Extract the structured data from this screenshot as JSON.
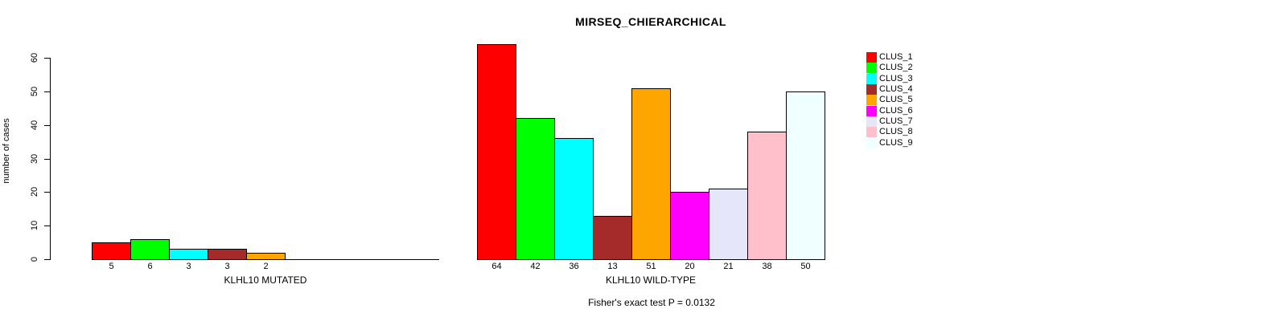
{
  "title": "MIRSEQ_CHIERARCHICAL",
  "footer": "Fisher's exact test P = 0.0132",
  "y_axis": {
    "label": "number of cases",
    "ticks": [
      0,
      10,
      20,
      30,
      40,
      50,
      60
    ]
  },
  "legend": {
    "items": [
      {
        "label": "CLUS_1",
        "color": "#FF0000"
      },
      {
        "label": "CLUS_2",
        "color": "#00FF00"
      },
      {
        "label": "CLUS_3",
        "color": "#00FFFF"
      },
      {
        "label": "CLUS_4",
        "color": "#A52A2A"
      },
      {
        "label": "CLUS_5",
        "color": "#FFA500"
      },
      {
        "label": "CLUS_6",
        "color": "#FF00FF"
      },
      {
        "label": "CLUS_7",
        "color": "#E6E6FA"
      },
      {
        "label": "CLUS_8",
        "color": "#FFC0CB"
      },
      {
        "label": "CLUS_9",
        "color": "#F0FFFF"
      }
    ]
  },
  "chart_data": {
    "type": "bar",
    "title": "MIRSEQ_CHIERARCHICAL",
    "ylabel": "number of cases",
    "ylim": [
      0,
      60
    ],
    "yticks": [
      0,
      10,
      20,
      30,
      40,
      50,
      60
    ],
    "grid": false,
    "legend_position": "right",
    "legend_entries": [
      "CLUS_1",
      "CLUS_2",
      "CLUS_3",
      "CLUS_4",
      "CLUS_5",
      "CLUS_6",
      "CLUS_7",
      "CLUS_8",
      "CLUS_9"
    ],
    "annotation": "Fisher's exact test P = 0.0132",
    "panels": [
      {
        "xlabel": "KLHL10 MUTATED",
        "categories": [
          "CLUS_1",
          "CLUS_2",
          "CLUS_3",
          "CLUS_4",
          "CLUS_5"
        ],
        "values": [
          5,
          6,
          3,
          3,
          2
        ],
        "bar_labels": [
          "5",
          "6",
          "3",
          "3",
          "2"
        ],
        "colors": [
          "#FF0000",
          "#00FF00",
          "#00FFFF",
          "#A52A2A",
          "#FFA500"
        ]
      },
      {
        "xlabel": "KLHL10 WILD-TYPE",
        "categories": [
          "CLUS_1",
          "CLUS_2",
          "CLUS_3",
          "CLUS_4",
          "CLUS_5",
          "CLUS_6",
          "CLUS_7",
          "CLUS_8",
          "CLUS_9"
        ],
        "values": [
          64,
          42,
          36,
          13,
          51,
          20,
          21,
          38,
          50
        ],
        "bar_labels": [
          "64",
          "42",
          "36",
          "13",
          "51",
          "20",
          "21",
          "38",
          "50"
        ],
        "colors": [
          "#FF0000",
          "#00FF00",
          "#00FFFF",
          "#A52A2A",
          "#FFA500",
          "#FF00FF",
          "#E6E6FA",
          "#FFC0CB",
          "#F0FFFF"
        ]
      }
    ]
  }
}
